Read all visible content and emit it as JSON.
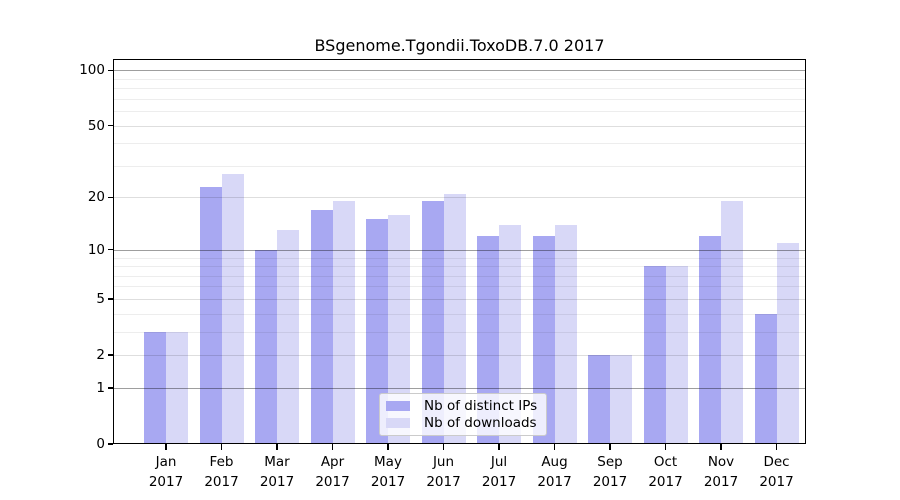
{
  "colors": {
    "distinct_ips": "#a8a8f2",
    "downloads": "#d8d8f7",
    "decade_grid": "rgba(0,0,0,0.38)",
    "labeled_grid": "rgba(0,0,0,0.13)",
    "minor_grid": "rgba(0,0,0,0.07)",
    "frame": "#000000",
    "legend_border": "#cbcbcb"
  },
  "chart_data": {
    "type": "bar",
    "title": "BSgenome.Tgondii.ToxoDB.7.0 2017",
    "months": [
      "Jan",
      "Feb",
      "Mar",
      "Apr",
      "May",
      "Jun",
      "Jul",
      "Aug",
      "Sep",
      "Oct",
      "Nov",
      "Dec"
    ],
    "year_label": "2017",
    "series": [
      {
        "name": "Nb of distinct IPs",
        "color_key": "distinct_ips",
        "values": [
          3,
          23,
          10,
          17,
          15,
          19,
          12,
          12,
          2,
          8,
          12,
          4
        ]
      },
      {
        "name": "Nb of downloads",
        "color_key": "downloads",
        "values": [
          3,
          27,
          13,
          19,
          16,
          21,
          14,
          14,
          2,
          8,
          19,
          11
        ]
      }
    ],
    "y_ticks": [
      0,
      1,
      2,
      5,
      10,
      20,
      50,
      100
    ],
    "decade_lines": [
      1,
      10,
      100
    ],
    "minor_gridlines": [
      3,
      4,
      6,
      7,
      8,
      9,
      30,
      40,
      60,
      70,
      80,
      90
    ],
    "y_scale": "log10(value+1)",
    "y_max": 115,
    "grid": "on",
    "legend_position": "lower-center"
  }
}
